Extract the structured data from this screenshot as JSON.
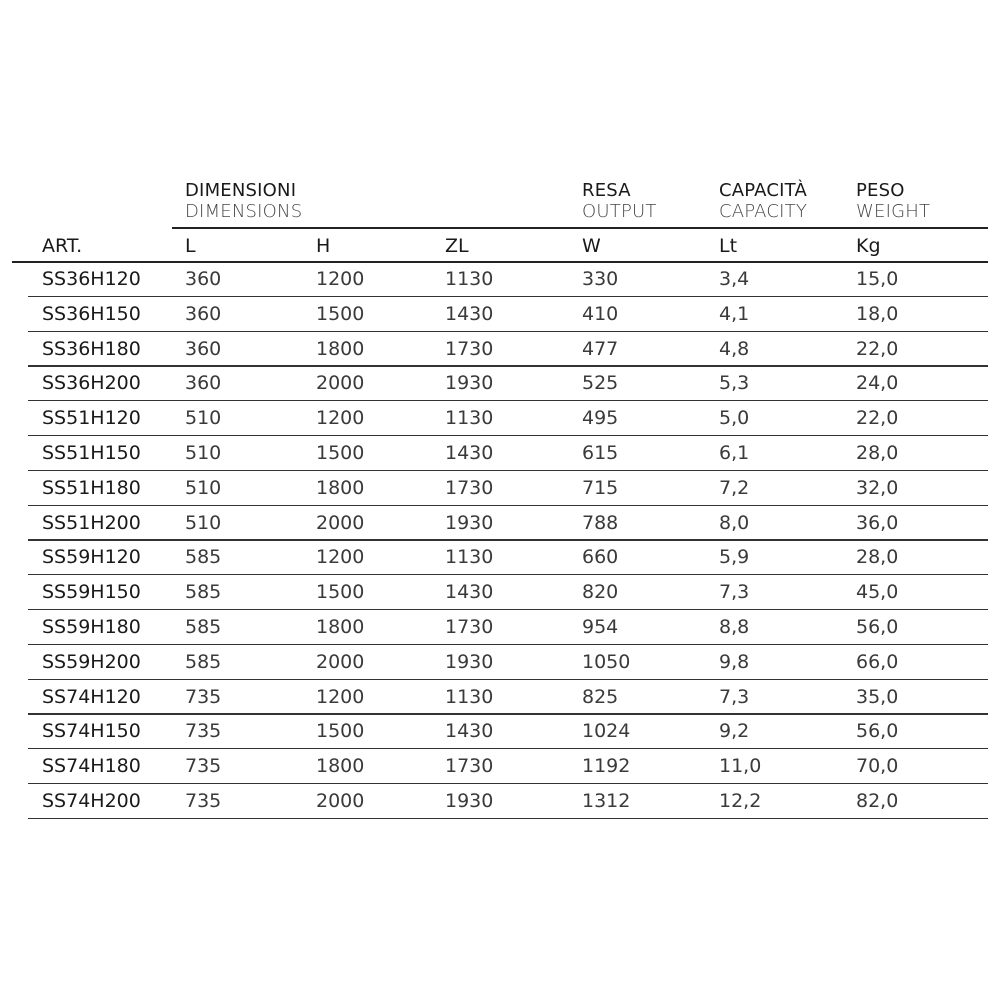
{
  "headers": {
    "art": "ART.",
    "dimensions": {
      "it": "DIMENSIONI",
      "en": "DIMENSIONS"
    },
    "output": {
      "it": "RESA",
      "en": "OUTPUT"
    },
    "capacity": {
      "it": "CAPACITÀ",
      "en": "CAPACITY"
    },
    "weight": {
      "it": "PESO",
      "en": "WEIGHT"
    },
    "units": {
      "L": "L",
      "H": "H",
      "ZL": "ZL",
      "W": "W",
      "Lt": "Lt",
      "Kg": "Kg"
    }
  },
  "rows": [
    [
      "SS36H120",
      "360",
      "1200",
      "1130",
      "330",
      "3,4",
      "15,0"
    ],
    [
      "SS36H150",
      "360",
      "1500",
      "1430",
      "410",
      "4,1",
      "18,0"
    ],
    [
      "SS36H180",
      "360",
      "1800",
      "1730",
      "477",
      "4,8",
      "22,0"
    ],
    [
      "SS36H200",
      "360",
      "2000",
      "1930",
      "525",
      "5,3",
      "24,0"
    ],
    [
      "SS51H120",
      "510",
      "1200",
      "1130",
      "495",
      "5,0",
      "22,0"
    ],
    [
      "SS51H150",
      "510",
      "1500",
      "1430",
      "615",
      "6,1",
      "28,0"
    ],
    [
      "SS51H180",
      "510",
      "1800",
      "1730",
      "715",
      "7,2",
      "32,0"
    ],
    [
      "SS51H200",
      "510",
      "2000",
      "1930",
      "788",
      "8,0",
      "36,0"
    ],
    [
      "SS59H120",
      "585",
      "1200",
      "1130",
      "660",
      "5,9",
      "28,0"
    ],
    [
      "SS59H150",
      "585",
      "1500",
      "1430",
      "820",
      "7,3",
      "45,0"
    ],
    [
      "SS59H180",
      "585",
      "1800",
      "1730",
      "954",
      "8,8",
      "56,0"
    ],
    [
      "SS59H200",
      "585",
      "2000",
      "1930",
      "1050",
      "9,8",
      "66,0"
    ],
    [
      "SS74H120",
      "735",
      "1200",
      "1130",
      "825",
      "7,3",
      "35,0"
    ],
    [
      "SS74H150",
      "735",
      "1500",
      "1430",
      "1024",
      "9,2",
      "56,0"
    ],
    [
      "SS74H180",
      "735",
      "1800",
      "1730",
      "1192",
      "11,0",
      "70,0"
    ],
    [
      "SS74H200",
      "735",
      "2000",
      "1930",
      "1312",
      "12,2",
      "82,0"
    ]
  ]
}
